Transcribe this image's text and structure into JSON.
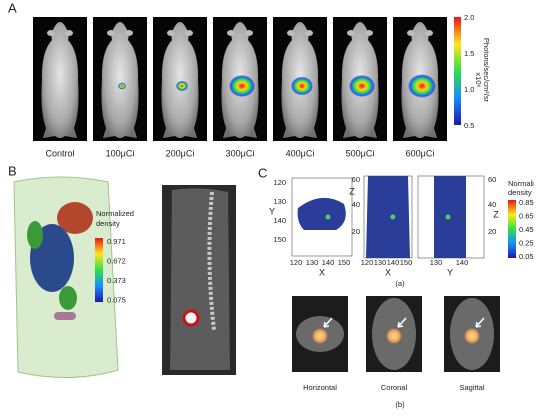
{
  "panel_a": {
    "label": "A",
    "mice": [
      "Control",
      "100μCi",
      "200μCi",
      "300μCi",
      "400μCi",
      "500μCi",
      "600μCi"
    ],
    "colorbar": {
      "ticks": [
        "2.0",
        "1.5",
        "1.0",
        "0.5"
      ],
      "multiplier": "x10⁶",
      "unit": "Photons/sec/cm²/sr"
    }
  },
  "panel_b": {
    "label": "B",
    "legend": {
      "title_lines": [
        "Normalized",
        "density"
      ],
      "ticks": [
        "0.971",
        "0.672",
        "0.373",
        "0.075"
      ]
    }
  },
  "panel_c": {
    "label": "C",
    "plots": [
      {
        "y_label": "Y",
        "y_ticks": [
          "120",
          "130",
          "140",
          "150"
        ],
        "x_label": "X",
        "x_ticks": [
          "120",
          "130",
          "140",
          "150"
        ]
      },
      {
        "y_label": "Z",
        "y_ticks": [
          "60",
          "40",
          "20"
        ],
        "x_label": "X",
        "x_ticks": [
          "120",
          "130",
          "140",
          "150"
        ]
      },
      {
        "y_label": "Z",
        "y_ticks": [
          "60",
          "40",
          "20"
        ],
        "x_label": "Y",
        "x_ticks": [
          "130",
          "140"
        ]
      }
    ],
    "legend": {
      "title_lines": [
        "Normali",
        "density"
      ],
      "ticks": [
        "0.85",
        "0.65",
        "0.45",
        "0.25",
        "0.05"
      ]
    },
    "caption_a": "(a)",
    "views": [
      "Horizontal",
      "Coronal",
      "Sagittal"
    ],
    "caption_b": "(b)"
  }
}
